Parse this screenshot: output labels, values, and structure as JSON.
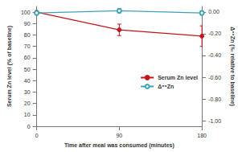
{
  "chart_data": {
    "type": "line",
    "x_label": "Time after meal was consumed (minutes)",
    "y_label": "Serum Zn level (% of baseline)",
    "y2_label": "Δ⁶⁶Zn (‰ relative to baseline)",
    "xlim": [
      0,
      180
    ],
    "xticks": [
      0,
      90,
      180
    ],
    "ylim": [
      0,
      105
    ],
    "yticks": [
      0,
      10,
      20,
      30,
      40,
      50,
      60,
      70,
      80,
      90,
      100
    ],
    "y2lim": [
      -1.05,
      0.05
    ],
    "y2ticks": [
      {
        "value": -1,
        "label": "-1.00"
      },
      {
        "value": -0.8,
        "label": "-0.80"
      },
      {
        "value": -0.6,
        "label": "-0.60"
      },
      {
        "value": -0.4,
        "label": "-0.40"
      },
      {
        "value": -0.2,
        "label": "-0.20"
      },
      {
        "value": 0,
        "label": "0.00"
      }
    ],
    "grid": false,
    "legend": "right",
    "series": [
      {
        "name": "Serum Zn level",
        "color": "#c0171e",
        "marker": "circle",
        "line_style": "solid",
        "x": [
          0,
          90,
          180
        ],
        "values": [
          100,
          84.5,
          79
        ],
        "errors": [
          0,
          5,
          9
        ]
      },
      {
        "name": "Δ⁶⁶Zn",
        "color": "#3fa3b8",
        "marker": "emptyCircle",
        "line_style": "solid",
        "axis": "y2",
        "x": [
          0,
          90,
          180
        ],
        "values": [
          -0.01,
          0.01,
          -0.01
        ],
        "errors": [
          0.01,
          0.02,
          0.02
        ]
      }
    ]
  }
}
